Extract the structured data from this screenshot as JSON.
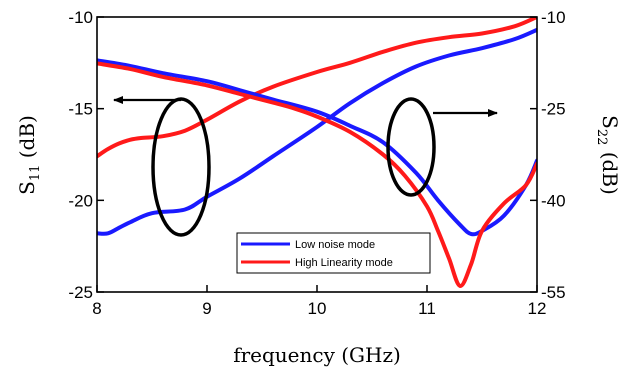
{
  "chart_data": {
    "type": "line",
    "xlabel": "frequency (GHz)",
    "ylabel_left": {
      "main": "S",
      "sub": "11",
      "unit": " (dB)"
    },
    "ylabel_right": {
      "main": "S",
      "sub": "22",
      "unit": " (dB)"
    },
    "xlim": [
      8,
      12
    ],
    "ylim_left": [
      -25,
      -10
    ],
    "ylim_right": [
      -55,
      -10
    ],
    "x_ticks": [
      "8",
      "9",
      "10",
      "11",
      "12"
    ],
    "y_ticks_left": [
      "-10",
      "-15",
      "-20",
      "-25"
    ],
    "y_ticks_right": [
      "-10",
      "-25",
      "-40",
      "-55"
    ],
    "grid": false,
    "legend_position": "bottom-right",
    "series": [
      {
        "name": "Low noise mode",
        "color": "#1a1aff",
        "axis": "left",
        "x": [
          8.0,
          8.1,
          8.2,
          8.3,
          8.5,
          8.8,
          9.0,
          9.3,
          9.6,
          10.0,
          10.3,
          10.6,
          10.9,
          11.2,
          11.5,
          11.8,
          12.0
        ],
        "y": [
          -21.8,
          -21.8,
          -21.5,
          -21.2,
          -20.7,
          -20.5,
          -19.8,
          -18.8,
          -17.6,
          -16.0,
          -14.7,
          -13.6,
          -12.7,
          -12.1,
          -11.7,
          -11.2,
          -10.7
        ]
      },
      {
        "name": "High Linearity mode",
        "color": "#ff1a1a",
        "axis": "left",
        "x": [
          8.0,
          8.1,
          8.2,
          8.3,
          8.4,
          8.6,
          8.8,
          9.0,
          9.3,
          9.6,
          10.0,
          10.3,
          10.6,
          10.9,
          11.2,
          11.5,
          11.8,
          12.0
        ],
        "y": [
          -17.6,
          -17.2,
          -16.9,
          -16.7,
          -16.6,
          -16.5,
          -16.2,
          -15.6,
          -14.6,
          -13.8,
          -13.0,
          -12.5,
          -11.9,
          -11.4,
          -11.1,
          -10.9,
          -10.5,
          -10.0
        ]
      },
      {
        "name": "",
        "color": "#1a1aff",
        "axis": "right",
        "x": [
          8.0,
          8.3,
          8.6,
          9.0,
          9.3,
          9.6,
          10.0,
          10.3,
          10.6,
          10.9,
          11.1,
          11.3,
          11.4,
          11.5,
          11.7,
          11.9,
          12.0
        ],
        "y": [
          -17.1,
          -18.0,
          -19.2,
          -20.5,
          -22.0,
          -23.5,
          -25.5,
          -27.8,
          -30.5,
          -35.5,
          -40.0,
          -44.0,
          -45.5,
          -45.0,
          -42.5,
          -37.5,
          -33.5
        ]
      },
      {
        "name": "",
        "color": "#ff1a1a",
        "axis": "right",
        "x": [
          8.0,
          8.3,
          8.6,
          9.0,
          9.3,
          9.6,
          9.8,
          10.0,
          10.3,
          10.6,
          10.8,
          11.0,
          11.1,
          11.2,
          11.3,
          11.4,
          11.5,
          11.7,
          11.9,
          12.0
        ],
        "y": [
          -17.6,
          -18.5,
          -19.8,
          -21.2,
          -22.6,
          -24.0,
          -25.0,
          -26.3,
          -28.8,
          -32.5,
          -36.0,
          -41.0,
          -45.0,
          -49.5,
          -54.0,
          -50.5,
          -45.0,
          -40.5,
          -37.5,
          -34.0
        ]
      }
    ]
  }
}
